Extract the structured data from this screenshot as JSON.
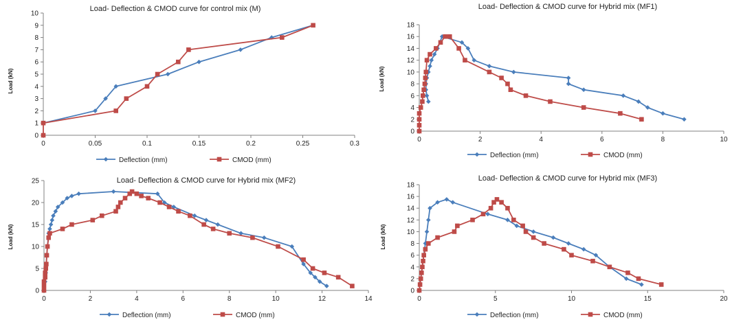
{
  "colors": {
    "deflection": "#4a7ebb",
    "cmod": "#be4b48",
    "axis": "#808080"
  },
  "chart_data": [
    {
      "type": "line",
      "title": "Load- Deflection & CMOD curve for control mix (M)",
      "ylabel": "Load (kN)",
      "xlabel": "",
      "xlim": [
        0,
        0.3
      ],
      "ylim": [
        0,
        10
      ],
      "xticks": [
        "0",
        "0.05",
        "0.1",
        "0.15",
        "0.2",
        "0.25",
        "0.3"
      ],
      "yticks": [
        "0",
        "1",
        "2",
        "3",
        "4",
        "5",
        "6",
        "7",
        "8",
        "9",
        "10"
      ],
      "legend": "bottom",
      "series": [
        {
          "name": "Deflection (mm)",
          "marker": "diamond",
          "x": [
            0,
            0.05,
            0.06,
            0.07,
            0.12,
            0.15,
            0.19,
            0.22,
            0.26
          ],
          "y": [
            1,
            2,
            3,
            4,
            5,
            6,
            7,
            8,
            9
          ]
        },
        {
          "name": "CMOD (mm)",
          "marker": "square",
          "x": [
            0,
            0,
            0.07,
            0.08,
            0.1,
            0.11,
            0.13,
            0.14,
            0.23,
            0.26
          ],
          "y": [
            0,
            1,
            2,
            3,
            4,
            5,
            6,
            7,
            8,
            9
          ]
        }
      ]
    },
    {
      "type": "line",
      "title": "Load- Deflection & CMOD curve for Hybrid mix (MF1)",
      "ylabel": "Load (kN)",
      "xlabel": "",
      "xlim": [
        0,
        10
      ],
      "ylim": [
        0,
        18
      ],
      "xticks": [
        "0",
        "2",
        "4",
        "6",
        "8",
        "10"
      ],
      "yticks": [
        "0",
        "2",
        "4",
        "6",
        "8",
        "10",
        "12",
        "14",
        "16",
        "18"
      ],
      "legend": "bottom",
      "series": [
        {
          "name": "Deflection (mm)",
          "marker": "diamond",
          "x": [
            0.3,
            0.25,
            0.22,
            0.22,
            0.25,
            0.3,
            0.35,
            0.4,
            0.5,
            0.6,
            0.75,
            1.4,
            1.6,
            1.8,
            2.3,
            3.1,
            4.9,
            4.9,
            5.4,
            6.7,
            7.2,
            7.5,
            8.0,
            8.7
          ],
          "y": [
            5,
            6,
            7,
            8,
            9,
            10,
            11,
            12,
            13,
            14,
            16,
            15,
            14,
            12,
            11,
            10,
            9,
            8,
            7,
            6,
            5,
            4,
            3,
            2
          ]
        },
        {
          "name": "CMOD (mm)",
          "marker": "square",
          "x": [
            0,
            0,
            0,
            0,
            0.05,
            0.1,
            0.12,
            0.15,
            0.18,
            0.2,
            0.22,
            0.25,
            0.35,
            0.55,
            0.7,
            0.85,
            1.0,
            1.3,
            1.5,
            2.3,
            2.7,
            2.9,
            3.0,
            3.5,
            4.3,
            5.4,
            6.6,
            7.3
          ],
          "y": [
            0,
            1,
            2,
            3,
            4,
            5,
            6,
            7,
            8,
            9,
            10,
            12,
            13,
            14,
            15,
            16,
            16,
            14,
            12,
            10,
            9,
            8,
            7,
            6,
            5,
            4,
            3,
            2
          ]
        }
      ]
    },
    {
      "type": "line",
      "title": "Load- Deflection & CMOD curve for Hybrid mix (MF2)",
      "ylabel": "Load (kN)",
      "xlabel": "",
      "xlim": [
        0,
        14
      ],
      "ylim": [
        0,
        25
      ],
      "xticks": [
        "0",
        "2",
        "4",
        "6",
        "8",
        "10",
        "12",
        "14"
      ],
      "yticks": [
        "0",
        "5",
        "10",
        "15",
        "20",
        "25"
      ],
      "legend": "bottom",
      "series": [
        {
          "name": "Deflection (mm)",
          "marker": "diamond",
          "x": [
            0,
            0.05,
            0.08,
            0.1,
            0.12,
            0.15,
            0.2,
            0.25,
            0.3,
            0.35,
            0.4,
            0.5,
            0.6,
            0.8,
            1.0,
            1.2,
            1.5,
            3.0,
            4.9,
            5.2,
            5.6,
            6.5,
            7.0,
            7.5,
            8.5,
            9.5,
            10.7,
            11.2,
            11.5,
            11.7,
            11.9,
            12.2
          ],
          "y": [
            0,
            2,
            4,
            6,
            8,
            10,
            13,
            14,
            15,
            16,
            17,
            18,
            19,
            20,
            21,
            21.5,
            22,
            22.5,
            22,
            20,
            19,
            17,
            16,
            15,
            13,
            12,
            10,
            6,
            4,
            3,
            2,
            1
          ]
        },
        {
          "name": "CMOD (mm)",
          "marker": "square",
          "x": [
            0,
            0,
            0,
            0.05,
            0.05,
            0.08,
            0.1,
            0.12,
            0.15,
            0.2,
            0.25,
            0.8,
            1.2,
            2.1,
            2.5,
            3.1,
            3.2,
            3.3,
            3.5,
            3.7,
            3.8,
            4.0,
            4.2,
            4.5,
            5.0,
            5.4,
            5.8,
            6.3,
            6.9,
            7.3,
            8.0,
            9.0,
            10.1,
            11.2,
            11.6,
            12.1,
            12.7,
            13.3
          ],
          "y": [
            0,
            1,
            2,
            3,
            4,
            5,
            6,
            8,
            10,
            12,
            13,
            14,
            15,
            16,
            17,
            18,
            19,
            20,
            21,
            22,
            22.5,
            22,
            21.5,
            21,
            20,
            19,
            18,
            17,
            15,
            14,
            13,
            12,
            10,
            7,
            5,
            4,
            3,
            1
          ]
        }
      ]
    },
    {
      "type": "line",
      "title": "Load- Deflection & CMOD curve for Hybrid mix (MF3)",
      "ylabel": "Load (kN)",
      "xlabel": "",
      "xlim": [
        0,
        20
      ],
      "ylim": [
        0,
        18
      ],
      "xticks": [
        "0",
        "5",
        "10",
        "15",
        "20"
      ],
      "yticks": [
        "0",
        "2",
        "4",
        "6",
        "8",
        "10",
        "12",
        "14",
        "16",
        "18"
      ],
      "legend": "bottom",
      "series": [
        {
          "name": "Deflection (mm)",
          "marker": "diamond",
          "x": [
            0,
            0.1,
            0.2,
            0.3,
            0.4,
            0.5,
            0.6,
            0.7,
            1.2,
            1.8,
            2.2,
            4.5,
            5.8,
            6.4,
            7.5,
            8.8,
            9.8,
            10.8,
            11.6,
            12.5,
            13.6,
            14.6
          ],
          "y": [
            0,
            2,
            4,
            6,
            8,
            10,
            12,
            14,
            15,
            15.5,
            15,
            13,
            12,
            11,
            10,
            9,
            8,
            7,
            6,
            4,
            2,
            1
          ]
        },
        {
          "name": "CMOD (mm)",
          "marker": "square",
          "x": [
            0,
            0.05,
            0.1,
            0.15,
            0.2,
            0.25,
            0.3,
            0.4,
            0.6,
            1.2,
            2.3,
            2.5,
            3.5,
            4.2,
            4.7,
            4.9,
            5.1,
            5.4,
            5.8,
            6.2,
            6.8,
            7.0,
            7.5,
            8.2,
            9.5,
            10.0,
            11.4,
            12.5,
            13.7,
            14.4,
            15.9
          ],
          "y": [
            0,
            1,
            2,
            3,
            4,
            5,
            6,
            7,
            8,
            9,
            10,
            11,
            12,
            13,
            14,
            15,
            15.5,
            15,
            14,
            12,
            11,
            10,
            9,
            8,
            7,
            6,
            5,
            4,
            3,
            2,
            1
          ]
        }
      ]
    }
  ]
}
